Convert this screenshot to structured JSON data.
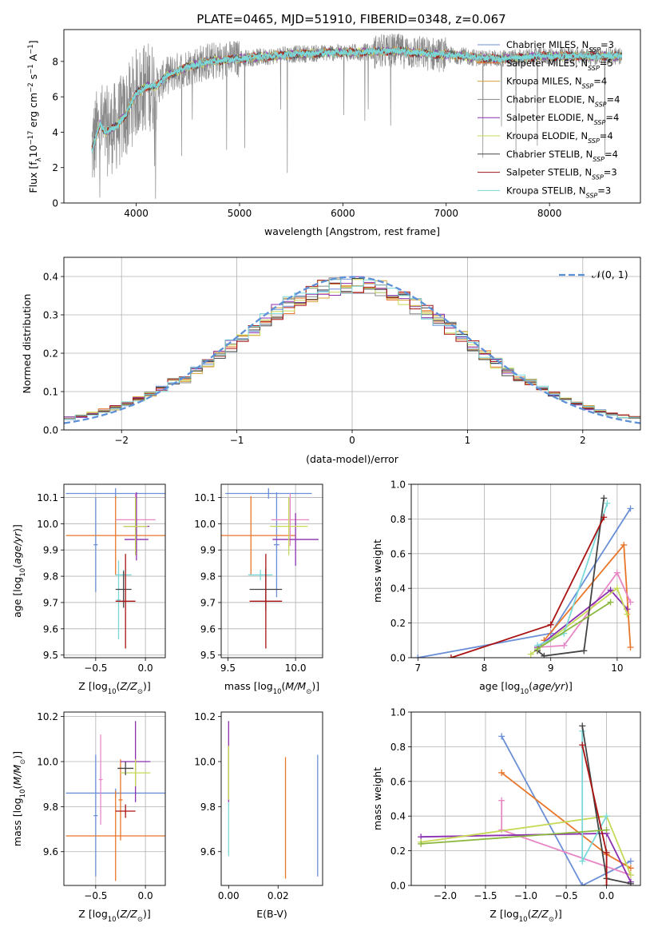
{
  "figure": {
    "title": "PLATE=0465, MJD=51910, FIBERID=0348, z=0.067"
  },
  "series": [
    {
      "name": "Chabrier MILES, N_SSP=3",
      "color": "#6a8fd6"
    },
    {
      "name": "Salpeter MILES, N_SSP=5",
      "color": "#e8762a"
    },
    {
      "name": "Kroupa MILES, N_SSP=4",
      "color": "#d4a036"
    },
    {
      "name": "Chabrier ELODIE, N_SSP=4",
      "color": "#888888"
    },
    {
      "name": "Salpeter ELODIE, N_SSP=4",
      "color": "#8b2fb0"
    },
    {
      "name": "Kroupa ELODIE, N_SSP=4",
      "color": "#c7d957"
    },
    {
      "name": "Chabrier STELIB, N_SSP=4",
      "color": "#444444"
    },
    {
      "name": "Salpeter STELIB, N_SSP=3",
      "color": "#aa1212"
    },
    {
      "name": "Kroupa STELIB, N_SSP=3",
      "color": "#7ad8d8"
    }
  ],
  "chart_data": [
    {
      "id": "spectrum",
      "type": "line",
      "title": "PLATE=0465, MJD=51910, FIBERID=0348, z=0.067",
      "xlabel": "wavelength [Angstrom, rest frame]",
      "ylabel": "Flux [f_λ 10^-17 erg cm^-2 s^-1 A^-1]",
      "xlim": [
        3300,
        8880
      ],
      "ylim": [
        0,
        9.8
      ],
      "xticks": [
        4000,
        5000,
        6000,
        7000,
        8000
      ],
      "yticks": [
        0,
        2,
        4,
        6,
        8
      ],
      "data_envelope": {
        "x": [
          3570,
          3650,
          3700,
          3800,
          3900,
          4000,
          4100,
          4200,
          4300,
          4500,
          4700,
          4900,
          5100,
          5300,
          5500,
          5700,
          5900,
          6100,
          6300,
          6500,
          6700,
          6900,
          7100,
          7300,
          7500,
          7700,
          7900,
          8100,
          8300,
          8500,
          8700
        ],
        "y": [
          3.0,
          4.5,
          4.0,
          4.3,
          5.0,
          6.2,
          6.6,
          6.6,
          7.2,
          7.7,
          8.0,
          8.1,
          8.2,
          8.3,
          8.4,
          8.45,
          8.5,
          8.5,
          8.55,
          8.6,
          8.5,
          8.4,
          8.35,
          8.2,
          8.15,
          8.2,
          8.3,
          8.3,
          8.3,
          8.3,
          8.3
        ]
      },
      "legend": "right",
      "grid": false
    },
    {
      "id": "residuals",
      "type": "histogram",
      "xlabel": "(data-model)/error",
      "ylabel": "Normed distribution",
      "xlim": [
        -2.5,
        2.5
      ],
      "ylim": [
        0,
        0.45
      ],
      "xticks": [
        -2,
        -1,
        0,
        1,
        2
      ],
      "yticks": [
        0.0,
        0.1,
        0.2,
        0.3,
        0.4
      ],
      "bin_width": 0.1,
      "reference_curve": "𝒩(0, 1)",
      "legend": "top-right",
      "grid": true
    },
    {
      "id": "age-vs-Z",
      "type": "scatter",
      "xlabel": "Z [log10(Z/Z⊙)]",
      "ylabel": "age  [log10(age/yr)]",
      "xlim": [
        -0.82,
        0.2
      ],
      "ylim": [
        9.49,
        10.15
      ],
      "xticks": [
        -0.5,
        0.0
      ],
      "yticks": [
        9.5,
        9.6,
        9.7,
        9.8,
        9.9,
        10.0,
        10.1
      ],
      "points": [
        {
          "x": -0.3,
          "xerr": 0.5,
          "y": 10.115,
          "yerr": 0.02,
          "color": "#6a8fd6"
        },
        {
          "x": -0.5,
          "xerr": 0.02,
          "y": 9.92,
          "yerr": 0.18,
          "color": "#6a8fd6"
        },
        {
          "x": -0.3,
          "xerr": 0.5,
          "y": 9.955,
          "yerr": 0.15,
          "color": "#e8762a"
        },
        {
          "x": -0.1,
          "xerr": 0.2,
          "y": 10.015,
          "yerr": 0.1,
          "color": "#e887c5"
        },
        {
          "x": -0.09,
          "xerr": 0.13,
          "y": 9.99,
          "yerr": 0.13,
          "color": "#8b2fb0"
        },
        {
          "x": -0.09,
          "xerr": 0.12,
          "y": 9.94,
          "yerr": 0.06,
          "color": "#8b2fb0"
        },
        {
          "x": -0.1,
          "xerr": 0.12,
          "y": 9.99,
          "yerr": 0.11,
          "color": "#c7d957"
        },
        {
          "x": -0.22,
          "xerr": 0.08,
          "y": 9.805,
          "yerr": 0.02,
          "color": "#7ad8d8"
        },
        {
          "x": -0.27,
          "xerr": 0.02,
          "y": 9.71,
          "yerr": 0.15,
          "color": "#7ad8d8"
        },
        {
          "x": -0.22,
          "xerr": 0.08,
          "y": 9.75,
          "yerr": 0.07,
          "color": "#444444"
        },
        {
          "x": -0.2,
          "xerr": 0.1,
          "y": 9.705,
          "yerr": 0.18,
          "color": "#aa1212"
        }
      ],
      "grid": true
    },
    {
      "id": "age-vs-mass",
      "type": "scatter",
      "xlabel": "mass [log10(M/M⊙)]",
      "ylabel": "",
      "xlim": [
        9.45,
        10.2
      ],
      "ylim": [
        9.49,
        10.15
      ],
      "xticks": [
        9.5,
        10.0
      ],
      "yticks": [
        9.5,
        9.6,
        9.7,
        9.8,
        9.9,
        10.0,
        10.1
      ],
      "points": [
        {
          "x": 9.8,
          "xerr": 0.32,
          "y": 10.115,
          "yerr": 0.02,
          "color": "#6a8fd6"
        },
        {
          "x": 9.86,
          "xerr": 0.02,
          "y": 9.92,
          "yerr": 0.2,
          "color": "#6a8fd6"
        },
        {
          "x": 9.67,
          "xerr": 0.33,
          "y": 9.955,
          "yerr": 0.15,
          "color": "#e8762a"
        },
        {
          "x": 9.96,
          "xerr": 0.14,
          "y": 10.015,
          "yerr": 0.1,
          "color": "#e887c5"
        },
        {
          "x": 10.0,
          "xerr": 0.17,
          "y": 9.94,
          "yerr": 0.1,
          "color": "#8b2fb0"
        },
        {
          "x": 9.95,
          "xerr": 0.14,
          "y": 9.99,
          "yerr": 0.11,
          "color": "#c7d957"
        },
        {
          "x": 9.74,
          "xerr": 0.09,
          "y": 9.805,
          "yerr": 0.02,
          "color": "#7ad8d8"
        },
        {
          "x": 9.78,
          "xerr": 0.12,
          "y": 9.75,
          "yerr": 0.08,
          "color": "#444444"
        },
        {
          "x": 9.78,
          "xerr": 0.12,
          "y": 9.705,
          "yerr": 0.18,
          "color": "#aa1212"
        }
      ],
      "grid": true
    },
    {
      "id": "weight-vs-age",
      "type": "line",
      "xlabel": "age  [log10(age/yr)]",
      "ylabel": "mass weight",
      "xlim": [
        6.9,
        10.35
      ],
      "ylim": [
        0,
        1.0
      ],
      "xticks": [
        7,
        8,
        9,
        10
      ],
      "yticks": [
        0.0,
        0.2,
        0.4,
        0.6,
        0.8,
        1.0
      ],
      "series": [
        {
          "color": "#6a8fd6",
          "x": [
            7.0,
            9.0,
            10.2
          ],
          "y": [
            0.0,
            0.14,
            0.86
          ]
        },
        {
          "color": "#e8762a",
          "x": [
            8.9,
            10.1,
            10.2
          ],
          "y": [
            0.1,
            0.65,
            0.06
          ]
        },
        {
          "color": "#e887c5",
          "x": [
            8.8,
            9.2,
            10.0,
            10.2
          ],
          "y": [
            0.06,
            0.07,
            0.49,
            0.32
          ]
        },
        {
          "color": "#8b2fb0",
          "x": [
            8.8,
            9.9,
            10.15
          ],
          "y": [
            0.06,
            0.39,
            0.28
          ]
        },
        {
          "color": "#c7d957",
          "x": [
            8.7,
            10.0,
            10.15
          ],
          "y": [
            0.02,
            0.4,
            0.25
          ]
        },
        {
          "color": "#7ad8d8",
          "x": [
            8.8,
            9.2,
            9.85
          ],
          "y": [
            0.07,
            0.14,
            0.89
          ]
        },
        {
          "color": "#444444",
          "x": [
            8.8,
            8.9,
            9.5,
            9.8
          ],
          "y": [
            0.04,
            0.01,
            0.04,
            0.92
          ]
        },
        {
          "color": "#aa1212",
          "x": [
            7.5,
            9.0,
            9.8
          ],
          "y": [
            0.0,
            0.19,
            0.81
          ]
        },
        {
          "color": "#8cb840",
          "x": [
            8.8,
            9.9
          ],
          "y": [
            0.05,
            0.32
          ]
        }
      ],
      "grid": true
    },
    {
      "id": "mass-vs-Z",
      "type": "scatter",
      "xlabel": "Z [log10(Z/Z⊙)]",
      "ylabel": "mass [log10(M/M⊙)]",
      "xlim": [
        -0.82,
        0.2
      ],
      "ylim": [
        9.45,
        10.22
      ],
      "xticks": [
        -0.5,
        0.0
      ],
      "yticks": [
        9.6,
        9.8,
        10.0,
        10.2
      ],
      "points": [
        {
          "x": -0.3,
          "xerr": 0.5,
          "y": 9.86,
          "yerr": 0.02,
          "color": "#6a8fd6"
        },
        {
          "x": -0.5,
          "xerr": 0.02,
          "y": 9.76,
          "yerr": 0.27,
          "color": "#6a8fd6"
        },
        {
          "x": -0.3,
          "xerr": 0.5,
          "y": 9.67,
          "yerr": 0.2,
          "color": "#e8762a"
        },
        {
          "x": -0.25,
          "xerr": 0.02,
          "y": 9.83,
          "yerr": 0.18,
          "color": "#e8762a"
        },
        {
          "x": -0.45,
          "xerr": 0.02,
          "y": 9.92,
          "yerr": 0.2,
          "color": "#e887c5"
        },
        {
          "x": -0.1,
          "xerr": 0.15,
          "y": 10.0,
          "yerr": 0.18,
          "color": "#8b2fb0"
        },
        {
          "x": -0.1,
          "xerr": 0.15,
          "y": 9.95,
          "yerr": 0.06,
          "color": "#c7d957"
        },
        {
          "x": -0.2,
          "xerr": 0.08,
          "y": 9.97,
          "yerr": 0.03,
          "color": "#444444"
        },
        {
          "x": -0.2,
          "xerr": 0.1,
          "y": 9.78,
          "yerr": 0.03,
          "color": "#aa1212"
        }
      ],
      "grid": true
    },
    {
      "id": "mass-vs-ebv",
      "type": "scatter",
      "xlabel": "E(B-V)",
      "ylabel": "",
      "xlim": [
        -0.003,
        0.038
      ],
      "ylim": [
        9.45,
        10.22
      ],
      "xticks": [
        0.0,
        0.02
      ],
      "yticks": [
        9.6,
        9.8,
        10.0,
        10.2
      ],
      "points": [
        {
          "x": 0.0,
          "y": 10.0,
          "yerr": 0.18,
          "color": "#8b2fb0"
        },
        {
          "x": 0.0,
          "y": 9.95,
          "yerr": 0.12,
          "color": "#c7d957"
        },
        {
          "x": 0.0,
          "y": 9.7,
          "yerr": 0.12,
          "color": "#7ad8d8"
        },
        {
          "x": 0.023,
          "y": 9.75,
          "yerr": 0.27,
          "color": "#e8762a"
        },
        {
          "x": 0.036,
          "y": 9.76,
          "yerr": 0.27,
          "color": "#6a8fd6"
        }
      ],
      "grid": false
    },
    {
      "id": "weight-vs-Z",
      "type": "line",
      "xlabel": "Z [log10(Z/Z⊙)]",
      "ylabel": "mass weight",
      "xlim": [
        -2.42,
        0.42
      ],
      "ylim": [
        0,
        1.0
      ],
      "xticks": [
        -2.0,
        -1.5,
        -1.0,
        -0.5,
        0.0
      ],
      "yticks": [
        0.0,
        0.2,
        0.4,
        0.6,
        0.8,
        1.0
      ],
      "series": [
        {
          "color": "#6a8fd6",
          "x": [
            -1.3,
            -0.3,
            0.3
          ],
          "y": [
            0.86,
            0.0,
            0.14
          ]
        },
        {
          "color": "#e8762a",
          "x": [
            -1.3,
            0.0,
            0.3
          ],
          "y": [
            0.65,
            0.18,
            0.1
          ]
        },
        {
          "color": "#e887c5",
          "x": [
            -1.3,
            -1.3,
            0.3
          ],
          "y": [
            0.49,
            0.32,
            0.06
          ]
        },
        {
          "color": "#8b2fb0",
          "x": [
            -2.3,
            0.0,
            0.3
          ],
          "y": [
            0.28,
            0.3,
            0.02
          ]
        },
        {
          "color": "#c7d957",
          "x": [
            -2.3,
            0.0,
            0.3
          ],
          "y": [
            0.25,
            0.4,
            0.06
          ]
        },
        {
          "color": "#7ad8d8",
          "x": [
            -0.3,
            -0.3,
            0.0
          ],
          "y": [
            0.89,
            0.14,
            0.4
          ]
        },
        {
          "color": "#444444",
          "x": [
            -0.3,
            0.0,
            0.3
          ],
          "y": [
            0.92,
            0.04,
            0.01
          ]
        },
        {
          "color": "#aa1212",
          "x": [
            -0.3,
            0.0,
            0.0
          ],
          "y": [
            0.81,
            0.19,
            0.0
          ]
        },
        {
          "color": "#8cb840",
          "x": [
            -2.3,
            0.0
          ],
          "y": [
            0.24,
            0.32
          ]
        }
      ],
      "grid": true
    }
  ]
}
